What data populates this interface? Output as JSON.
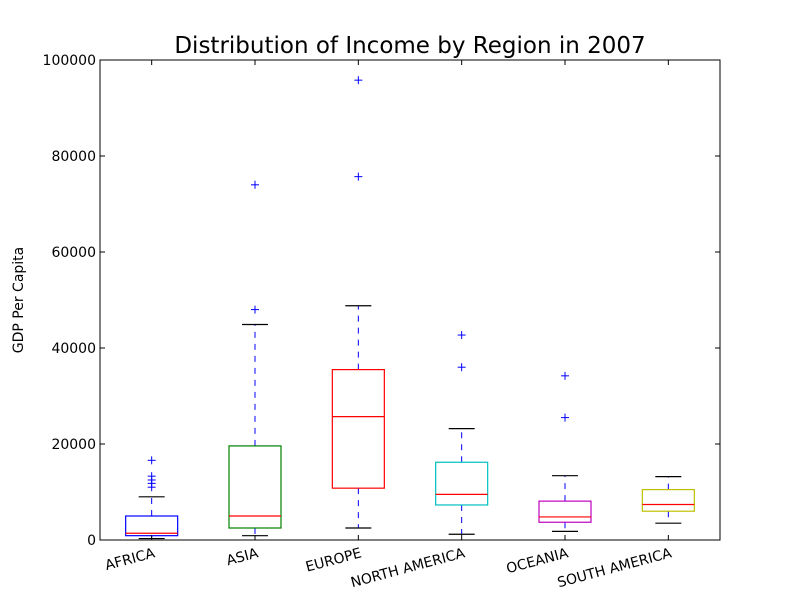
{
  "chart_data": {
    "type": "box",
    "title": "Distribution of Income by Region in 2007",
    "xlabel": "",
    "ylabel": "GDP Per Capita",
    "ylim": [
      0,
      100000
    ],
    "yticks": [
      0,
      20000,
      40000,
      60000,
      80000,
      100000
    ],
    "ytick_labels": [
      "0",
      "20000",
      "40000",
      "60000",
      "80000",
      "100000"
    ],
    "grid": false,
    "categories": [
      "AFRICA",
      "ASIA",
      "EUROPE",
      "NORTH AMERICA",
      "OCEANIA",
      "SOUTH AMERICA"
    ],
    "boxes": [
      {
        "category": "AFRICA",
        "color": "#0000ff",
        "whisker_low": 300,
        "q1": 900,
        "median": 1400,
        "q3": 5000,
        "whisker_high": 9000,
        "outliers": [
          11000,
          11800,
          12500,
          13300,
          16600
        ]
      },
      {
        "category": "ASIA",
        "color": "#008000",
        "whisker_low": 900,
        "q1": 2500,
        "median": 5000,
        "q3": 19600,
        "whisker_high": 44900,
        "outliers": [
          48000,
          74000
        ]
      },
      {
        "category": "EUROPE",
        "color": "#ff0000",
        "whisker_low": 2500,
        "q1": 10800,
        "median": 25700,
        "q3": 35500,
        "whisker_high": 48800,
        "outliers": [
          75700,
          95800
        ]
      },
      {
        "category": "NORTH AMERICA",
        "color": "#00bfbf",
        "whisker_low": 1200,
        "q1": 7300,
        "median": 9500,
        "q3": 16200,
        "whisker_high": 23200,
        "outliers": [
          36000,
          42700
        ]
      },
      {
        "category": "OCEANIA",
        "color": "#bf00bf",
        "whisker_low": 1800,
        "q1": 3700,
        "median": 4800,
        "q3": 8100,
        "whisker_high": 13400,
        "outliers": [
          25500,
          34200
        ]
      },
      {
        "category": "SOUTH AMERICA",
        "color": "#bfbf00",
        "whisker_low": 3500,
        "q1": 6000,
        "median": 7400,
        "q3": 10500,
        "whisker_high": 13200,
        "outliers": []
      }
    ],
    "whisker_color": "#0000ff",
    "cap_color": "#000000",
    "outlier_color": "#0000ff",
    "outlier_marker": "+"
  }
}
